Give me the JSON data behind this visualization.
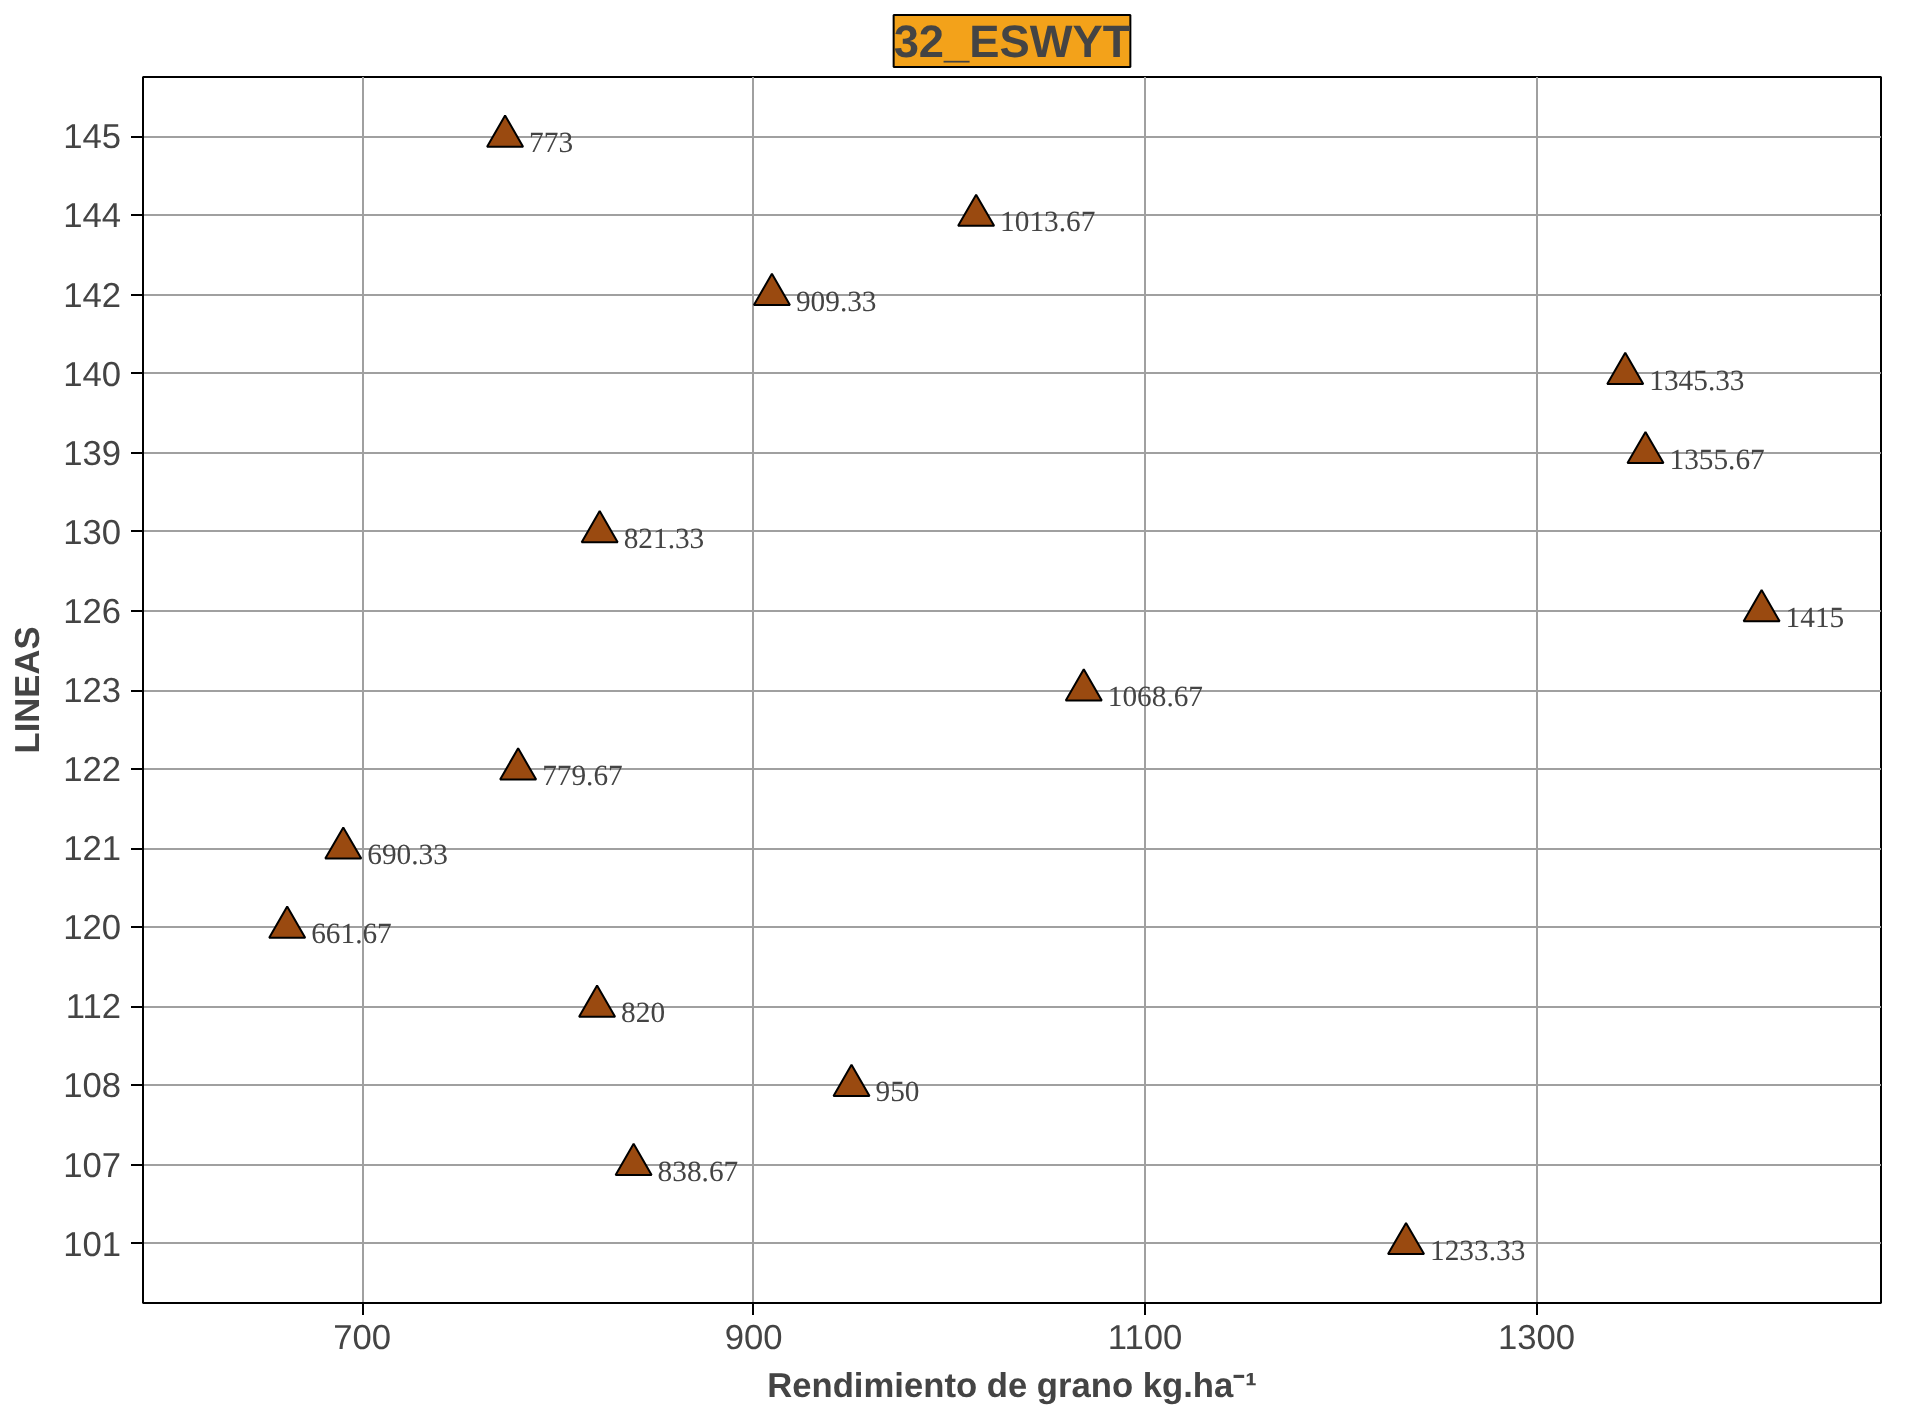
{
  "chart_data": {
    "type": "scatter",
    "title": "32_ESWYT",
    "xlabel": "Rendimiento de grano kg.ha⁻¹",
    "ylabel": "LINEAS",
    "categories": [
      "145",
      "144",
      "142",
      "140",
      "139",
      "130",
      "126",
      "123",
      "122",
      "121",
      "120",
      "112",
      "108",
      "107",
      "101"
    ],
    "orientation": "horizontal",
    "series": [
      {
        "color": "#9a4a10",
        "values": [
          773,
          1013.67,
          909.33,
          1345.33,
          1355.67,
          821.33,
          1415,
          1068.67,
          779.67,
          690.33,
          661.67,
          820,
          950,
          838.67,
          1233.33
        ]
      }
    ],
    "xlim": [
      588,
      1476
    ],
    "xticks": [
      700,
      900,
      1100,
      1300
    ],
    "grid": true,
    "marker": "triangle",
    "data_labels": true
  }
}
